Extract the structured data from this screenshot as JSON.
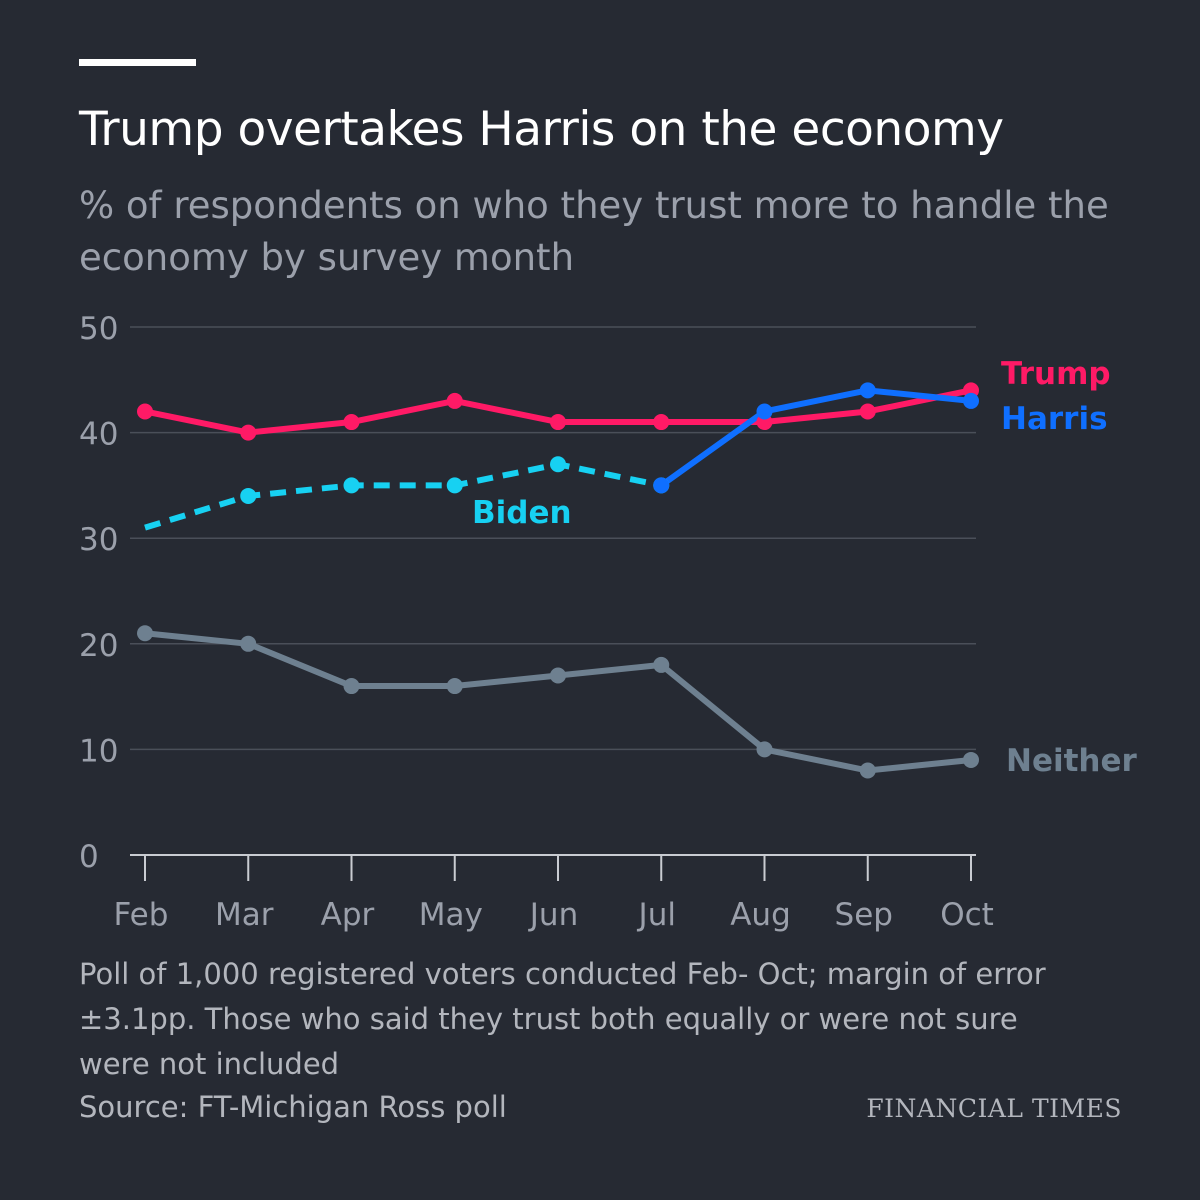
{
  "header": {
    "title": "Trump overtakes Harris on the economy",
    "subtitle": "%  of respondents on who they trust more to handle the economy by survey month"
  },
  "footer": {
    "note": "Poll of 1,000 registered voters conducted Feb- Oct; margin of error ±3.1pp. Those who said they trust both equally or were not sure were not included",
    "source": "Source: FT-Michigan Ross poll",
    "brand": "FINANCIAL TIMES"
  },
  "chart_data": {
    "type": "line",
    "title": "Trump overtakes Harris on the economy",
    "subtitle": "%  of respondents on who they trust more to handle the economy by survey month",
    "xlabel": "",
    "ylabel": "",
    "categories": [
      "Feb",
      "Mar",
      "Apr",
      "May",
      "Jun",
      "Jul",
      "Aug",
      "Sep",
      "Oct"
    ],
    "ylim": [
      0,
      50
    ],
    "yticks": [
      0,
      10,
      20,
      30,
      40,
      50
    ],
    "grid": true,
    "legend": "direct labels at line ends",
    "series": [
      {
        "name": "Trump",
        "color": "#ff1a66",
        "style": "solid",
        "values": [
          42,
          40,
          41,
          43,
          41,
          41,
          41,
          42,
          44
        ]
      },
      {
        "name": "Biden",
        "color": "#17d1f2",
        "style": "dashed",
        "start_marker": false,
        "values": [
          31,
          34,
          35,
          35,
          37,
          35,
          null,
          null,
          null
        ]
      },
      {
        "name": "Harris",
        "color": "#0f6fff",
        "style": "solid",
        "values": [
          null,
          null,
          null,
          null,
          null,
          35,
          42,
          44,
          43
        ]
      },
      {
        "name": "Neither",
        "color": "#6e8090",
        "style": "solid",
        "values": [
          21,
          20,
          16,
          16,
          17,
          18,
          10,
          8,
          9
        ]
      }
    ]
  }
}
